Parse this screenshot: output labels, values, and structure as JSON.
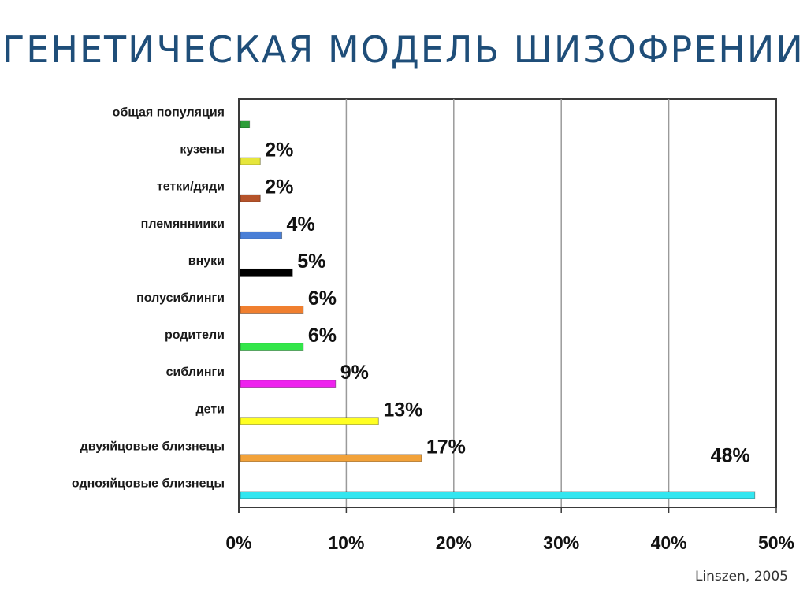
{
  "slide": {
    "title": "ГЕНЕТИЧЕСКАЯ МОДЕЛЬ ШИЗОФРЕНИИ",
    "source": "Linszen, 2005"
  },
  "chart_data": {
    "type": "bar",
    "orientation": "horizontal",
    "categories": [
      "общая популяция",
      "кузены",
      "тетки/дяди",
      "племянниики",
      "внуки",
      "полусиблинги",
      "родители",
      "сиблинги",
      "дети",
      "двуяйцовые близнецы",
      "однояйцовые близнецы"
    ],
    "values": [
      1,
      2,
      2,
      4,
      5,
      6,
      6,
      9,
      13,
      17,
      48
    ],
    "value_labels": [
      "",
      "2%",
      "2%",
      "4%",
      "5%",
      "6%",
      "6%",
      "9%",
      "13%",
      "17%",
      "48%"
    ],
    "colors": [
      "#2e9e3a",
      "#e6e63c",
      "#b5532a",
      "#4a7fd6",
      "#000000",
      "#f07f2f",
      "#33e64a",
      "#ee22ee",
      "#ffff22",
      "#f2a23a",
      "#33e6f0"
    ],
    "xlim": [
      0,
      50
    ],
    "xticks": [
      "0%",
      "10%",
      "20%",
      "30%",
      "40%",
      "50%"
    ],
    "xlabel": "",
    "ylabel": "",
    "grid": true,
    "legend": "none"
  }
}
